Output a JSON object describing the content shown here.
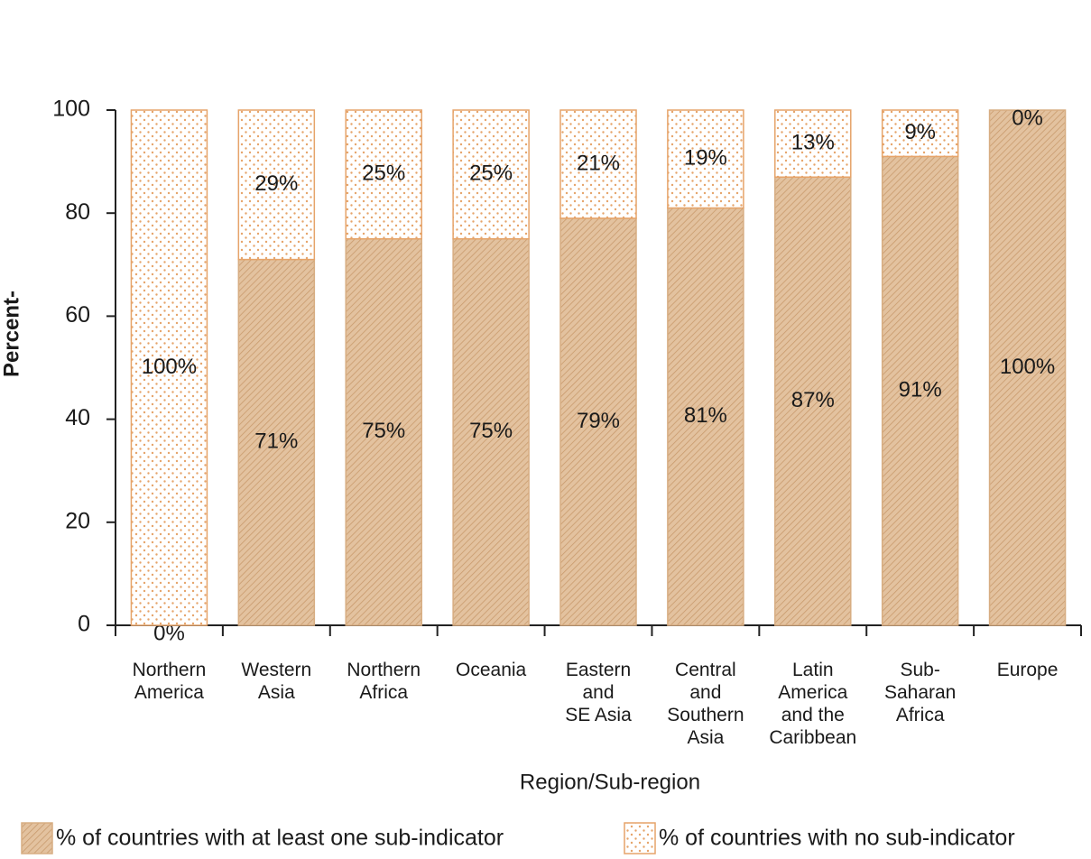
{
  "chart_data": {
    "type": "stacked_bar",
    "categories": [
      [
        "Northern",
        "America"
      ],
      [
        "Western",
        "Asia"
      ],
      [
        "Northern",
        "Africa"
      ],
      [
        "Oceania"
      ],
      [
        "Eastern",
        "and",
        "SE Asia"
      ],
      [
        "Central",
        "and",
        "Southern",
        "Asia"
      ],
      [
        "Latin",
        "America",
        "and the",
        "Caribbean"
      ],
      [
        "Sub-",
        "Saharan",
        "Africa"
      ],
      [
        "Europe"
      ]
    ],
    "series": [
      {
        "name": "% of countries with at least one sub-indicator",
        "color": "#d7ad82",
        "pattern": "hatch",
        "values": [
          0,
          71,
          75,
          75,
          79,
          81,
          87,
          91,
          100
        ],
        "value_labels": [
          "0%",
          "71%",
          "75%",
          "75%",
          "79%",
          "81%",
          "87%",
          "91%",
          "100%"
        ]
      },
      {
        "name": "% of countries with no sub-indicator",
        "color": "#e6a46a",
        "pattern": "dots",
        "values": [
          100,
          29,
          25,
          25,
          21,
          19,
          13,
          9,
          0
        ],
        "value_labels": [
          "100%",
          "29%",
          "25%",
          "25%",
          "21%",
          "19%",
          "13%",
          "9%",
          "0%"
        ]
      }
    ],
    "ylabel": "Percent-",
    "xlabel": "Region/Sub-region",
    "ylim": [
      0,
      100
    ],
    "yticks": [
      0,
      20,
      40,
      60,
      80,
      100
    ],
    "legend": "bottom"
  }
}
